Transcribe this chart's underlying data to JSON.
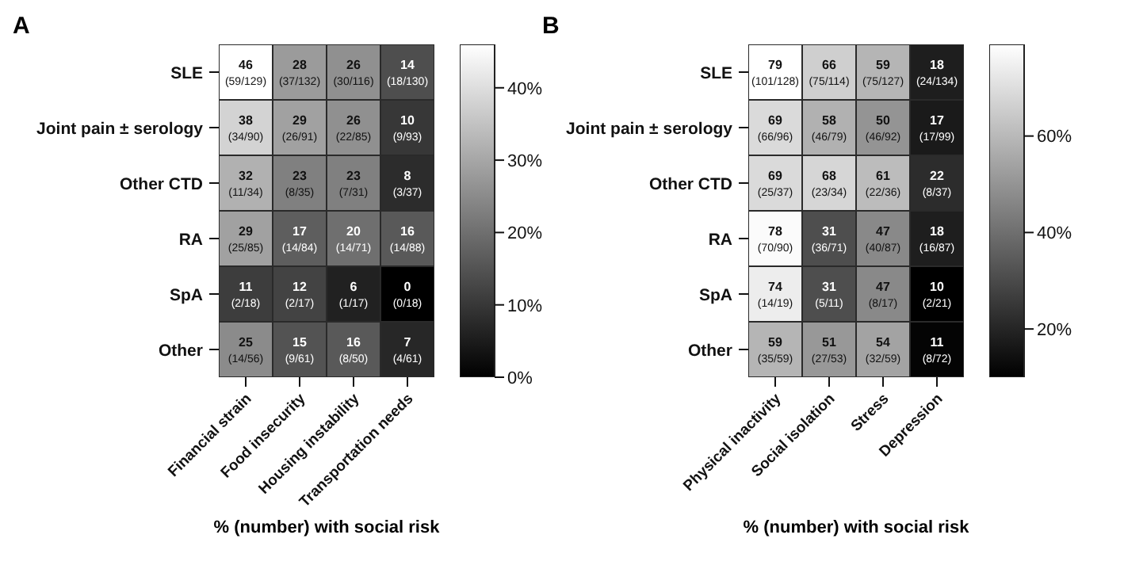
{
  "chart_data": [
    {
      "type": "heatmap",
      "title": "A",
      "xlabel": "% (number) with social risk",
      "categories": [
        "Financial strain",
        "Food insecurity",
        "Housing instability",
        "Transportation needs"
      ],
      "y_categories": [
        "SLE",
        "Joint pain ± serology",
        "Other CTD",
        "RA",
        "SpA",
        "Other"
      ],
      "cells": [
        [
          46,
          28,
          26,
          14
        ],
        [
          38,
          29,
          26,
          10
        ],
        [
          32,
          23,
          23,
          8
        ],
        [
          29,
          17,
          20,
          16
        ],
        [
          11,
          12,
          6,
          0
        ],
        [
          25,
          15,
          16,
          7
        ]
      ],
      "cell_labels": [
        [
          "46\n(59/129)",
          "28\n(37/132)",
          "26\n(30/116)",
          "14\n(18/130)"
        ],
        [
          "38\n(34/90)",
          "29\n(26/91)",
          "26\n(22/85)",
          "10\n(9/93)"
        ],
        [
          "32\n(11/34)",
          "23\n(8/35)",
          "23\n(7/31)",
          "8\n(3/37)"
        ],
        [
          "29\n(25/85)",
          "17\n(14/84)",
          "20\n(14/71)",
          "16\n(14/88)"
        ],
        [
          "11\n(2/18)",
          "12\n(2/17)",
          "6\n(1/17)",
          "0\n(0/18)"
        ],
        [
          "25\n(14/56)",
          "15\n(9/61)",
          "16\n(8/50)",
          "7\n(4/61)"
        ]
      ],
      "clim": [
        0,
        46
      ],
      "cticks": [
        {
          "value": 0,
          "label": "0%"
        },
        {
          "value": 10,
          "label": "10%"
        },
        {
          "value": 20,
          "label": "20%"
        },
        {
          "value": 30,
          "label": "30%"
        },
        {
          "value": 40,
          "label": "40%"
        }
      ]
    },
    {
      "type": "heatmap",
      "title": "B",
      "xlabel": "% (number) with social risk",
      "categories": [
        "Physical inactivity",
        "Social isolation",
        "Stress",
        "Depression"
      ],
      "y_categories": [
        "SLE",
        "Joint pain ± serology",
        "Other CTD",
        "RA",
        "SpA",
        "Other"
      ],
      "cells": [
        [
          79,
          66,
          59,
          18
        ],
        [
          69,
          58,
          50,
          17
        ],
        [
          69,
          68,
          61,
          22
        ],
        [
          78,
          31,
          47,
          18
        ],
        [
          74,
          31,
          47,
          10
        ],
        [
          59,
          51,
          54,
          11
        ]
      ],
      "cell_labels": [
        [
          "79\n(101/128)",
          "66\n(75/114)",
          "59\n(75/127)",
          "18\n(24/134)"
        ],
        [
          "69\n(66/96)",
          "58\n(46/79)",
          "50\n(46/92)",
          "17\n(17/99)"
        ],
        [
          "69\n(25/37)",
          "68\n(23/34)",
          "61\n(22/36)",
          "22\n(8/37)"
        ],
        [
          "78\n(70/90)",
          "31\n(36/71)",
          "47\n(40/87)",
          "18\n(16/87)"
        ],
        [
          "74\n(14/19)",
          "31\n(5/11)",
          "47\n(8/17)",
          "10\n(2/21)"
        ],
        [
          "59\n(35/59)",
          "51\n(27/53)",
          "54\n(32/59)",
          "11\n(8/72)"
        ]
      ],
      "clim": [
        10,
        79
      ],
      "cticks": [
        {
          "value": 20,
          "label": "20%"
        },
        {
          "value": 40,
          "label": "40%"
        },
        {
          "value": 60,
          "label": "60%"
        }
      ]
    }
  ]
}
